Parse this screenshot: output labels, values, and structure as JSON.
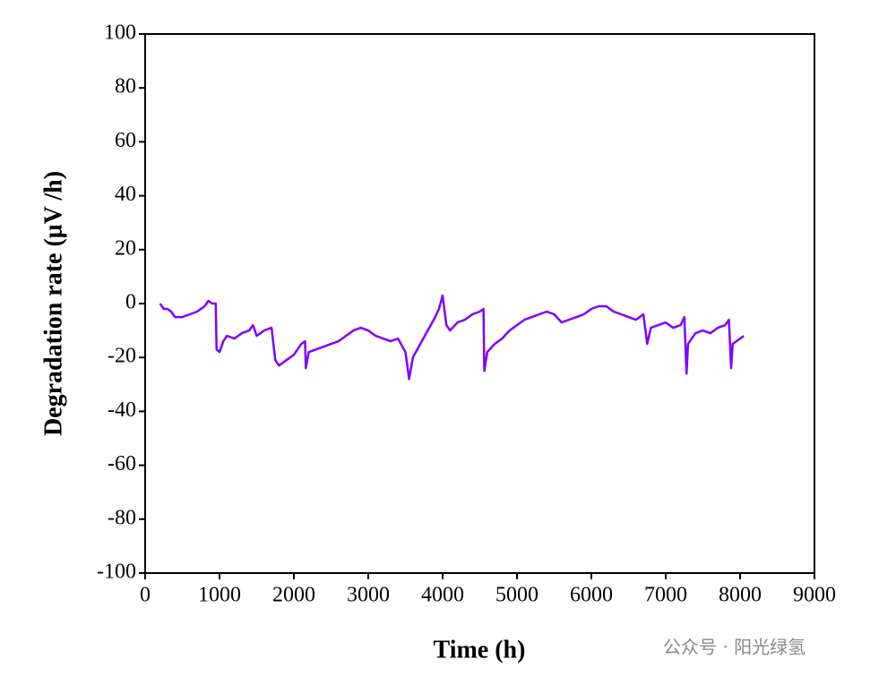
{
  "chart_data": {
    "type": "line",
    "xlabel": "Time (h)",
    "ylabel": "Degradation rate (μV /h)",
    "watermark": "公众号 · 阳光绿氢",
    "xlim": [
      0,
      9000
    ],
    "xticks": [
      0,
      1000,
      2000,
      3000,
      4000,
      5000,
      6000,
      7000,
      8000,
      9000
    ],
    "ylim": [
      -100,
      100
    ],
    "yticks": [
      -100,
      -80,
      -60,
      -40,
      -20,
      0,
      20,
      40,
      60,
      80,
      100
    ],
    "grid": false,
    "series": [
      {
        "name": "Degradation rate",
        "color": "#8000ff",
        "x": [
          200,
          250,
          300,
          350,
          400,
          500,
          600,
          700,
          800,
          850,
          900,
          950,
          960,
          1000,
          1050,
          1100,
          1200,
          1300,
          1400,
          1450,
          1500,
          1600,
          1700,
          1750,
          1800,
          1900,
          2000,
          2100,
          2150,
          2160,
          2200,
          2300,
          2400,
          2500,
          2600,
          2700,
          2800,
          2900,
          3000,
          3100,
          3200,
          3300,
          3400,
          3500,
          3550,
          3600,
          3700,
          3800,
          3900,
          3950,
          4000,
          4050,
          4100,
          4200,
          4300,
          4400,
          4500,
          4550,
          4560,
          4600,
          4700,
          4800,
          4900,
          5000,
          5100,
          5200,
          5300,
          5400,
          5500,
          5600,
          5700,
          5800,
          5900,
          6000,
          6100,
          6200,
          6300,
          6400,
          6500,
          6600,
          6700,
          6750,
          6800,
          6900,
          7000,
          7100,
          7200,
          7250,
          7280,
          7300,
          7400,
          7500,
          7600,
          7700,
          7800,
          7850,
          7880,
          7900,
          8000,
          8050
        ],
        "values": [
          0,
          -2,
          -2,
          -3,
          -5,
          -5,
          -4,
          -3,
          -1,
          1,
          0,
          0,
          -17,
          -18,
          -14,
          -12,
          -13,
          -11,
          -10,
          -8,
          -12,
          -10,
          -9,
          -21,
          -23,
          -21,
          -19,
          -15,
          -14,
          -24,
          -18,
          -17,
          -16,
          -15,
          -14,
          -12,
          -10,
          -9,
          -10,
          -12,
          -13,
          -14,
          -13,
          -18,
          -28,
          -20,
          -15,
          -10,
          -5,
          -2,
          3,
          -8,
          -10,
          -7,
          -6,
          -4,
          -3,
          -2,
          -25,
          -18,
          -15,
          -13,
          -10,
          -8,
          -6,
          -5,
          -4,
          -3,
          -4,
          -7,
          -6,
          -5,
          -4,
          -2,
          -1,
          -1,
          -3,
          -4,
          -5,
          -6,
          -4,
          -15,
          -9,
          -8,
          -7,
          -9,
          -8,
          -5,
          -26,
          -15,
          -11,
          -10,
          -11,
          -9,
          -8,
          -6,
          -24,
          -15,
          -13,
          -12
        ]
      }
    ]
  }
}
